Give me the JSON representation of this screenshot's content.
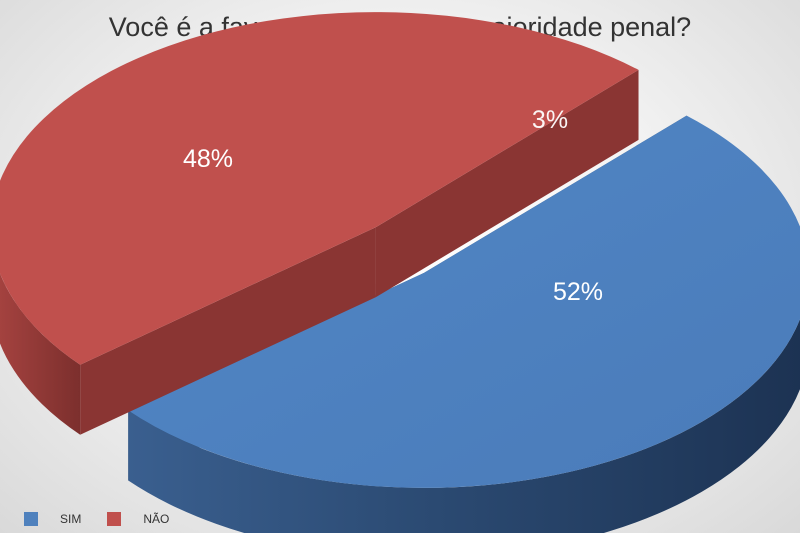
{
  "chart_data": {
    "type": "pie",
    "title": "Você é a favor da redução da maioridade penal?",
    "categories": [
      "SIM",
      "NÃO"
    ],
    "values": [
      52,
      48
    ],
    "data_labels": [
      "52%",
      "48%"
    ],
    "extra_label": "3%",
    "colors": [
      "#4f81bd",
      "#c0504d"
    ],
    "legend_position": "bottom-left",
    "style": "3d-exploded"
  }
}
